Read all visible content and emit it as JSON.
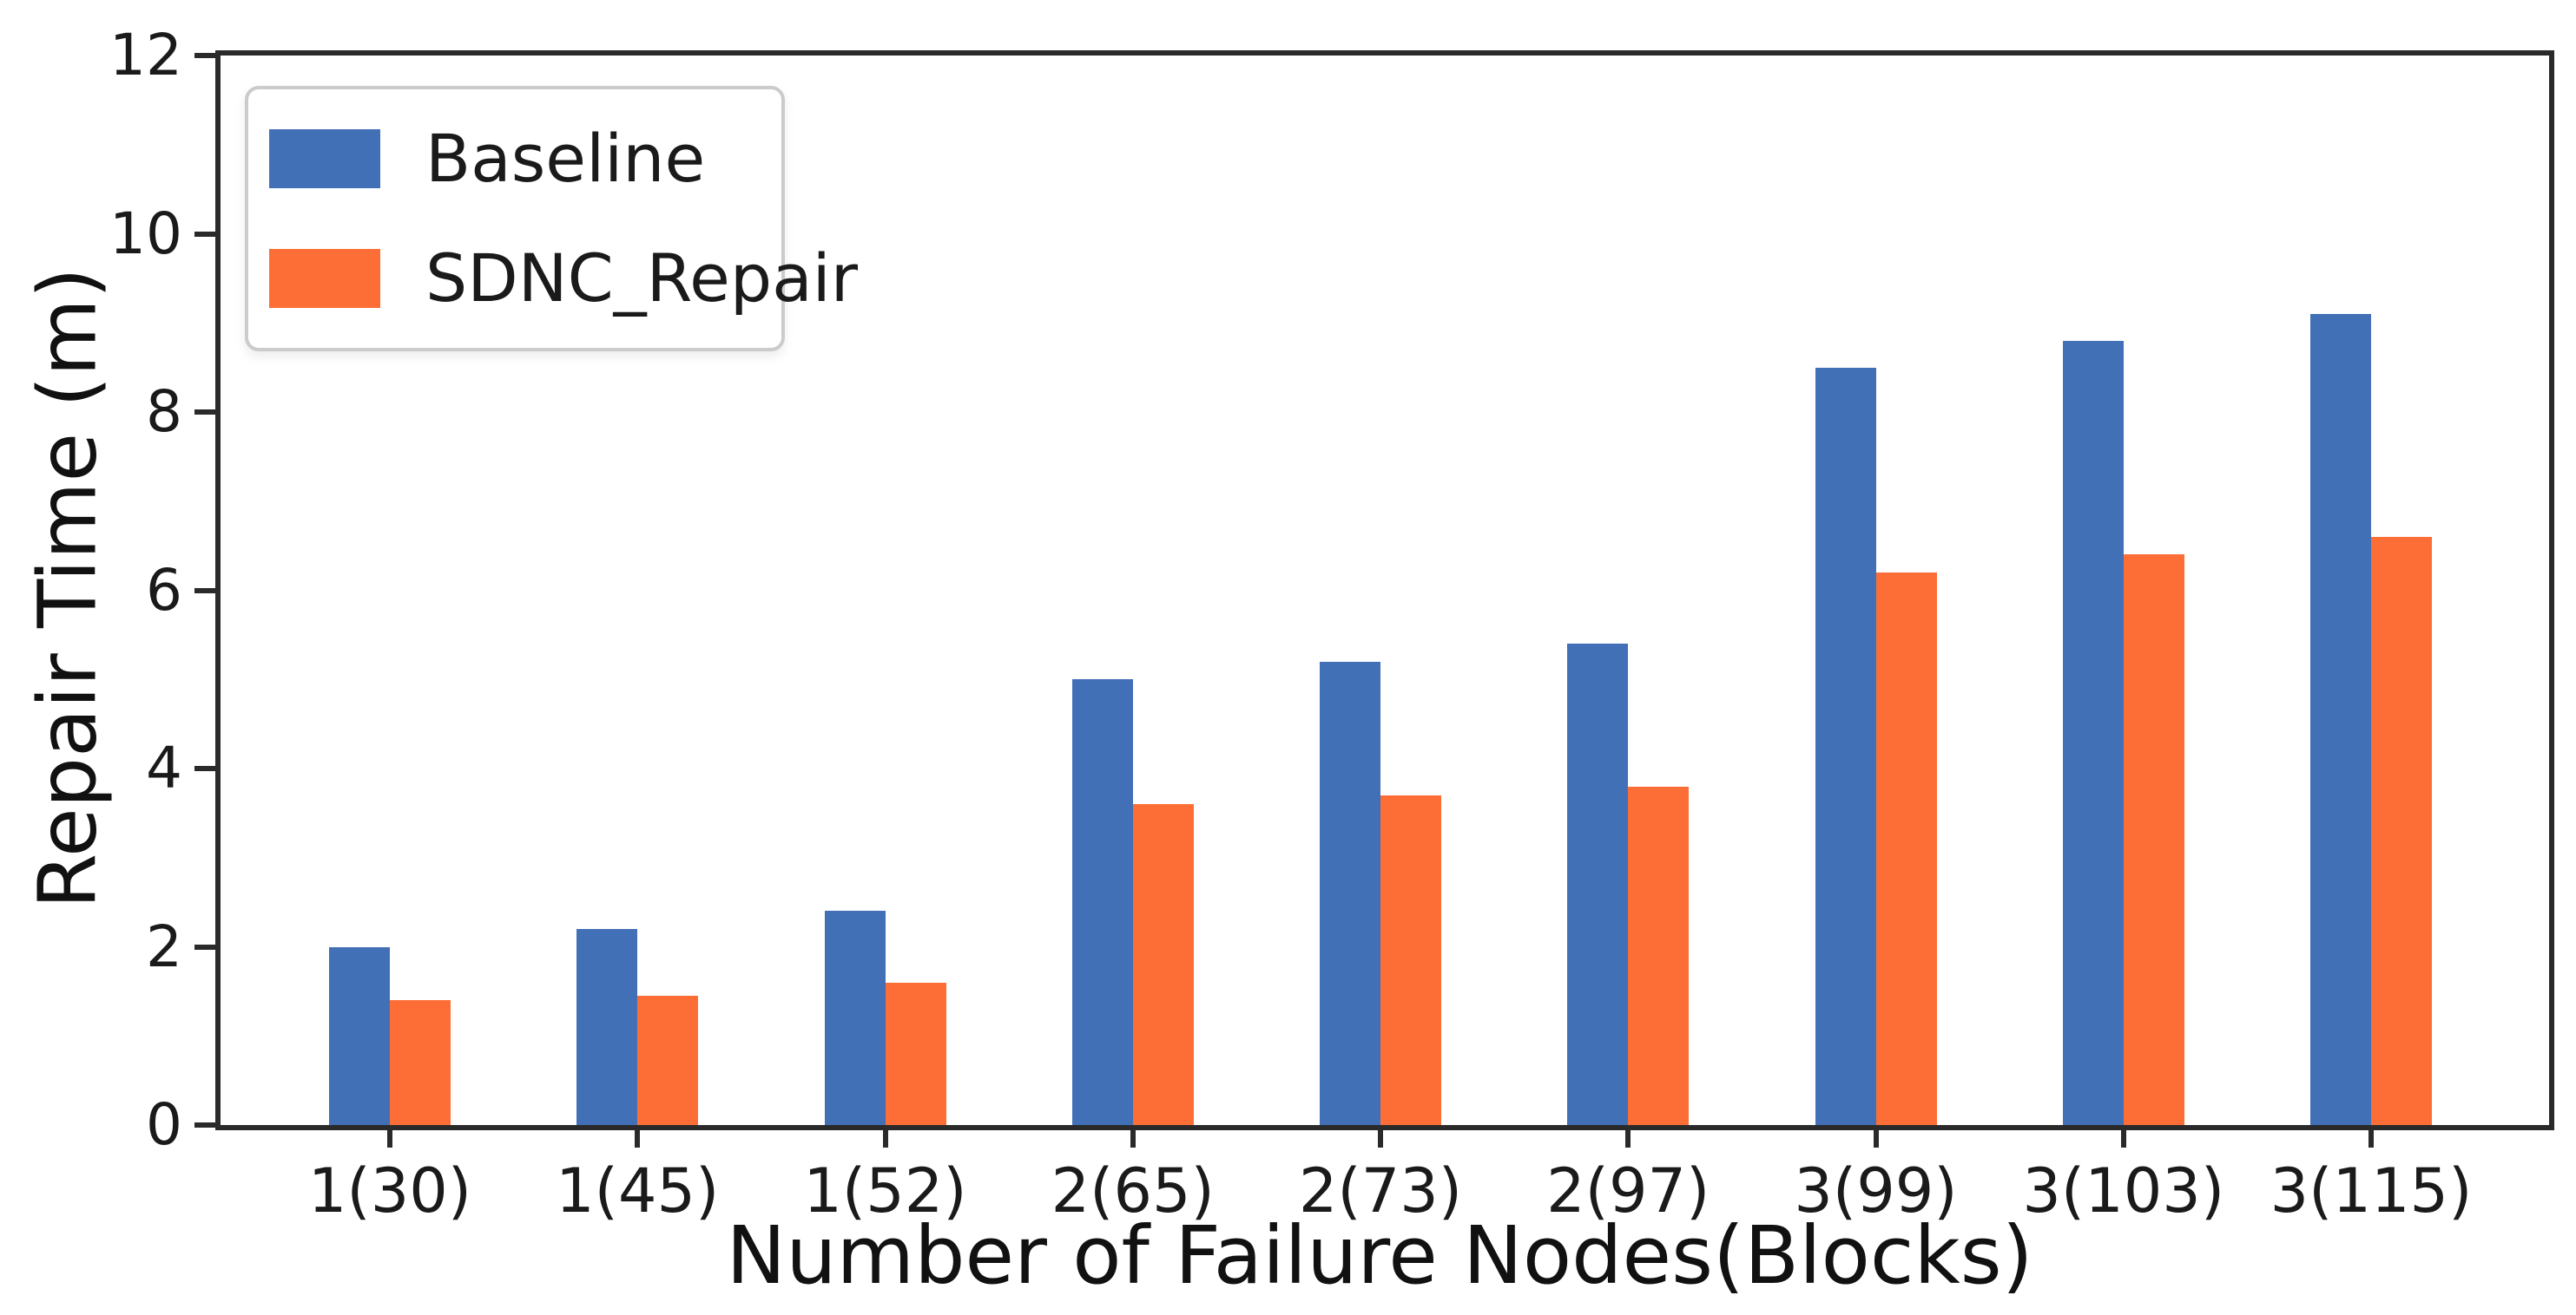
{
  "figure": {
    "background": "#ffffff",
    "spine_color": "#2a2a2a",
    "text_color": "#1a1a1a"
  },
  "chart_data": {
    "type": "bar",
    "title": "",
    "xlabel": "Number of Failure Nodes(Blocks)",
    "ylabel": "Repair Time (m)",
    "categories": [
      "1(30)",
      "1(45)",
      "1(52)",
      "2(65)",
      "2(73)",
      "2(97)",
      "3(99)",
      "3(103)",
      "3(115)"
    ],
    "series": [
      {
        "name": "Baseline",
        "color": "#4170b6",
        "values": [
          2.0,
          2.2,
          2.4,
          5.0,
          5.2,
          5.4,
          8.5,
          8.8,
          9.1
        ]
      },
      {
        "name": "SDNC_Repair",
        "color": "#fd6e37",
        "values": [
          1.4,
          1.45,
          1.6,
          3.6,
          3.7,
          3.8,
          6.2,
          6.4,
          6.6
        ]
      }
    ],
    "ylim": [
      0,
      12
    ],
    "yticks": [
      0,
      2,
      4,
      6,
      8,
      10,
      12
    ],
    "grid": false,
    "legend_position": "upper left",
    "legend_items": [
      {
        "label": "Baseline",
        "color": "#4170b6"
      },
      {
        "label": "SDNC_Repair",
        "color": "#fd6e37"
      }
    ]
  }
}
